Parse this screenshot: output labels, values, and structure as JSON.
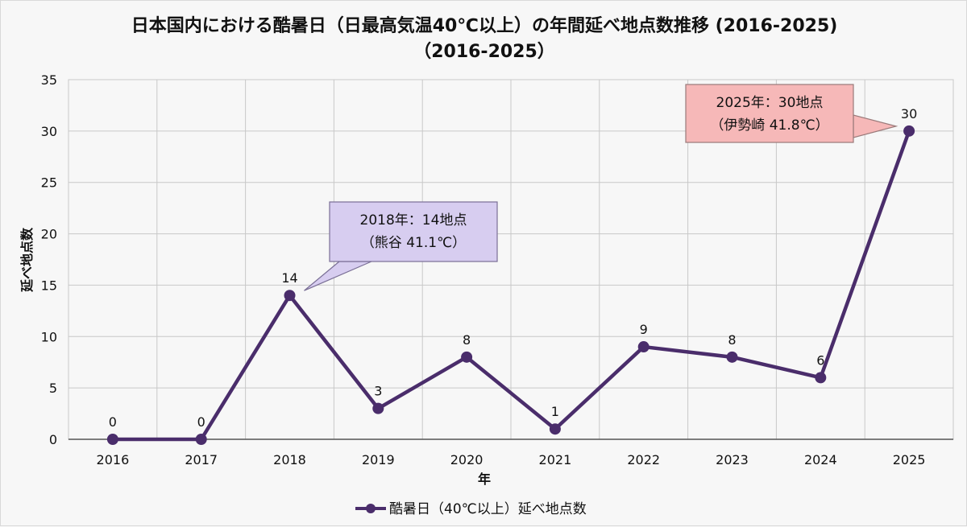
{
  "chart_data": {
    "type": "line",
    "title": "日本国内における酷暑日（日最高気温40℃以上）の年間延べ地点数推移 (2016-2025)",
    "subtitle": "（2016-2025）",
    "xlabel": "年",
    "ylabel": "延べ地点数",
    "categories": [
      "2016",
      "2017",
      "2018",
      "2019",
      "2020",
      "2021",
      "2022",
      "2023",
      "2024",
      "2025"
    ],
    "yticks": [
      0,
      5,
      10,
      15,
      20,
      25,
      30,
      35
    ],
    "ylim": [
      0,
      35
    ],
    "grid": true,
    "legend_position": "bottom-center",
    "series": [
      {
        "name": "酷暑日（40℃以上）延べ地点数",
        "color": "#4a2d6b",
        "values": [
          0,
          0,
          14,
          3,
          8,
          1,
          9,
          8,
          6,
          30
        ]
      }
    ],
    "annotations": [
      {
        "category": "2018",
        "line1": "2018年：14地点",
        "line2": "（熊谷 41.1℃）",
        "fill": "#d7cdf0",
        "stroke": "#7a6f96"
      },
      {
        "category": "2025",
        "line1": "2025年：30地点",
        "line2": "（伊勢崎 41.8℃）",
        "fill": "#f6b8b8",
        "stroke": "#9a7a7a"
      }
    ]
  }
}
